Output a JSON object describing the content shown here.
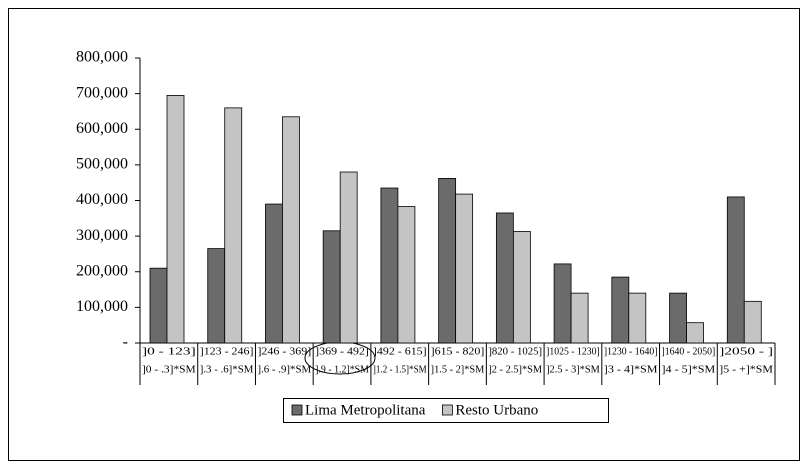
{
  "chart_data": {
    "type": "bar",
    "categories": [
      [
        "]0 - 123]",
        "]0 - .3]*SM"
      ],
      [
        "]123 - 246]",
        "].3 - .6]*SM"
      ],
      [
        "]246 - 369]",
        "].6 - .9]*SM"
      ],
      [
        "]369 - 492]",
        "].9 - 1.2]*SM"
      ],
      [
        "]492 - 615]",
        "]1.2 - 1.5]*SM"
      ],
      [
        "]615 - 820]",
        "]1.5 - 2]*SM"
      ],
      [
        "]820 - 1025]",
        "]2 - 2.5]*SM"
      ],
      [
        "]1025 - 1230]",
        "]2.5 - 3]*SM"
      ],
      [
        "]1230 - 1640]",
        "]3 - 4]*SM"
      ],
      [
        "]1640 - 2050]",
        "]4 - 5]*SM"
      ],
      [
        "]2050 - ]",
        "]5 - +]*SM"
      ]
    ],
    "series": [
      {
        "name": "Lima Metropolitana",
        "color": "#6b6b6b",
        "values": [
          210000,
          265000,
          390000,
          315000,
          435000,
          462000,
          365000,
          222000,
          185000,
          140000,
          410000
        ]
      },
      {
        "name": "Resto Urbano",
        "color": "#c4c4c4",
        "values": [
          695000,
          660000,
          635000,
          480000,
          383000,
          418000,
          313000,
          140000,
          140000,
          57000,
          117000
        ]
      }
    ],
    "ylim": [
      0,
      800000
    ],
    "yticks": [
      {
        "value": 0,
        "label": "-"
      },
      {
        "value": 100000,
        "label": "100,000"
      },
      {
        "value": 200000,
        "label": "200,000"
      },
      {
        "value": 300000,
        "label": "300,000"
      },
      {
        "value": 400000,
        "label": "400,000"
      },
      {
        "value": 500000,
        "label": "500,000"
      },
      {
        "value": 600000,
        "label": "600,000"
      },
      {
        "value": 700000,
        "label": "700,000"
      },
      {
        "value": 800000,
        "label": "800,000"
      }
    ],
    "legend": "bottom"
  }
}
